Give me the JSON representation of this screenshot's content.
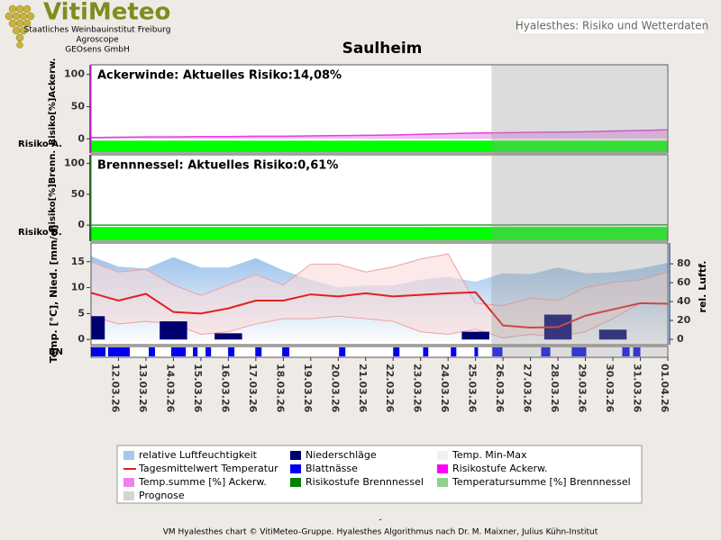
{
  "header": {
    "logo": "VitiMeteo",
    "org_lines": [
      "Staatliches Weinbauinstitut Freiburg",
      "Agroscope",
      "GEOsens GmbH"
    ],
    "app_title": "Hyalesthes: Risiko und Wetterdaten",
    "title": "Saulheim"
  },
  "prognose_start": 14.58,
  "prognose_color": "#9a9a9a",
  "chart_data": [
    {
      "type": "risk",
      "annotation": "Ackerwinde: Aktuelles Risiko:14,08%",
      "y_label": "Risiko[%]Ackerw.",
      "row_label": "Risiko A.",
      "ylim": [
        -22,
        115
      ],
      "yticks": [
        0,
        50,
        100
      ],
      "color": "#e040e0",
      "axis_color": "#ff00ff",
      "band_color": "#00ff00",
      "values": [
        2,
        2.5,
        3,
        3,
        3.5,
        3.5,
        4,
        4,
        4.5,
        5,
        5.5,
        6,
        7,
        8,
        9,
        9.5,
        10,
        10.5,
        11,
        12,
        13,
        14.08
      ]
    },
    {
      "type": "risk",
      "annotation": "Brennnessel: Aktuelles Risiko:0,61%",
      "y_label": "Risiko[%]Brenn.",
      "row_label": "Risiko B.",
      "ylim": [
        -26,
        114
      ],
      "yticks": [
        0,
        50,
        100
      ],
      "color": "#30a030",
      "axis_color": "#008000",
      "band_color": "#00ff00",
      "values": [
        0,
        0,
        0,
        0,
        0,
        0,
        0,
        0,
        0,
        0.05,
        0.1,
        0.1,
        0.15,
        0.2,
        0.25,
        0.3,
        0.35,
        0.4,
        0.45,
        0.5,
        0.55,
        0.61
      ]
    },
    {
      "type": "weather",
      "y_label": "Temp. [°C], Nied. [mm/d]",
      "y2_label": "rel. Luftf.",
      "strip_label": "BN",
      "categories": [
        null,
        "12.03.26",
        "13.03.26",
        "14.03.26",
        "15.03.26",
        "16.03.26",
        "17.03.26",
        "18.03.26",
        "19.03.26",
        "20.03.26",
        "21.03.26",
        "22.03.26",
        "23.03.26",
        "24.03.26",
        "25.03.26",
        "26.03.26",
        "27.03.26",
        "28.03.26",
        "29.03.26",
        "30.03.26",
        "31.03.26",
        "01.04.26"
      ],
      "ylim": [
        -1,
        18.6
      ],
      "yticks": [
        0,
        5,
        10,
        15
      ],
      "y2lim": [
        -5.7,
        102
      ],
      "y2ticks": [
        0,
        20,
        40,
        60,
        80
      ],
      "humidity": {
        "axis": "y2",
        "color": "#a3c8ee",
        "values": [
          88,
          77,
          75,
          87,
          76,
          76,
          86,
          73,
          63,
          55,
          57,
          57,
          63,
          66,
          61,
          70,
          69,
          76,
          70,
          71,
          75,
          81
        ]
      },
      "temp_max": {
        "color": "#f0a0a0",
        "values": [
          15,
          13,
          13.5,
          10.5,
          8.5,
          10.5,
          12.5,
          10.5,
          14.5,
          14.5,
          13,
          14,
          15.5,
          16.5,
          7,
          6.5,
          8,
          7.5,
          10,
          11,
          11.5,
          13
        ]
      },
      "temp_min": {
        "color": "#f0a0a0",
        "values": [
          4.5,
          3,
          3.5,
          3,
          1,
          1.5,
          3,
          4,
          4,
          4.5,
          4,
          3.5,
          1.5,
          1,
          2,
          0.3,
          1,
          0.5,
          1.5,
          4,
          7,
          7
        ]
      },
      "temperature": {
        "color": "#e02020",
        "values": [
          9,
          7.5,
          8.8,
          5.3,
          5,
          6,
          7.5,
          7.5,
          8.7,
          8.3,
          8.9,
          8.3,
          8.6,
          8.9,
          9.1,
          2.7,
          2.3,
          2.4,
          4.6,
          5.8,
          7,
          6.9
        ]
      },
      "precipitation": {
        "color": "#000070",
        "values": [
          4.5,
          0,
          0,
          3.5,
          0,
          1.2,
          0,
          0,
          0,
          0,
          0,
          0,
          0,
          0,
          1.5,
          0,
          0,
          4.8,
          0,
          1.9,
          0,
          0
        ]
      },
      "leaf_wetness": {
        "color": "#0000ee",
        "intervals": [
          [
            0,
            0.53
          ],
          [
            0.62,
            1.41
          ],
          [
            2.1,
            2.33
          ],
          [
            2.92,
            3.45
          ],
          [
            3.71,
            3.88
          ],
          [
            4.17,
            4.37
          ],
          [
            4.99,
            5.22
          ],
          [
            5.98,
            6.21
          ],
          [
            6.96,
            7.22
          ],
          [
            9.03,
            9.26
          ],
          [
            11.0,
            11.23
          ],
          [
            12.09,
            12.28
          ],
          [
            13.1,
            13.3
          ],
          [
            13.96,
            14.09
          ],
          [
            14.61,
            14.98
          ],
          [
            16.39,
            16.72
          ],
          [
            17.5,
            18.03
          ],
          [
            19.34,
            19.61
          ],
          [
            19.74,
            20.0
          ]
        ]
      }
    }
  ],
  "legend": [
    {
      "name": "relative Luftfeuchtigkeit",
      "color": "#a3c8ee",
      "kind": "box"
    },
    {
      "name": "Niederschläge",
      "color": "#000070",
      "kind": "box"
    },
    {
      "name": "Temp. Min-Max",
      "color": "#f4f0f0",
      "kind": "box"
    },
    {
      "name": "Tagesmittelwert Temperatur",
      "color": "#e02020",
      "kind": "line"
    },
    {
      "name": "Blattnässe",
      "color": "#0000ee",
      "kind": "box"
    },
    {
      "name": "Risikostufe Ackerw.",
      "color": "#ff00ff",
      "kind": "box"
    },
    {
      "name": "Temp.summe [%] Ackerw.",
      "color": "#f080f0",
      "kind": "box"
    },
    {
      "name": "Risikostufe Brennnessel",
      "color": "#008000",
      "kind": "box"
    },
    {
      "name": "Temperatursumme [%] Brennnessel",
      "color": "#90d090",
      "kind": "box"
    },
    {
      "name": "Prognose",
      "color": "#d4d4d4",
      "kind": "box"
    }
  ],
  "footer": {
    "dash": "-",
    "credit": "VM Hyalesthes chart © VitiMeteo-Gruppe. Hyalesthes Algorithmus nach Dr. M. Maixner, Julius Kühn-Institut"
  }
}
